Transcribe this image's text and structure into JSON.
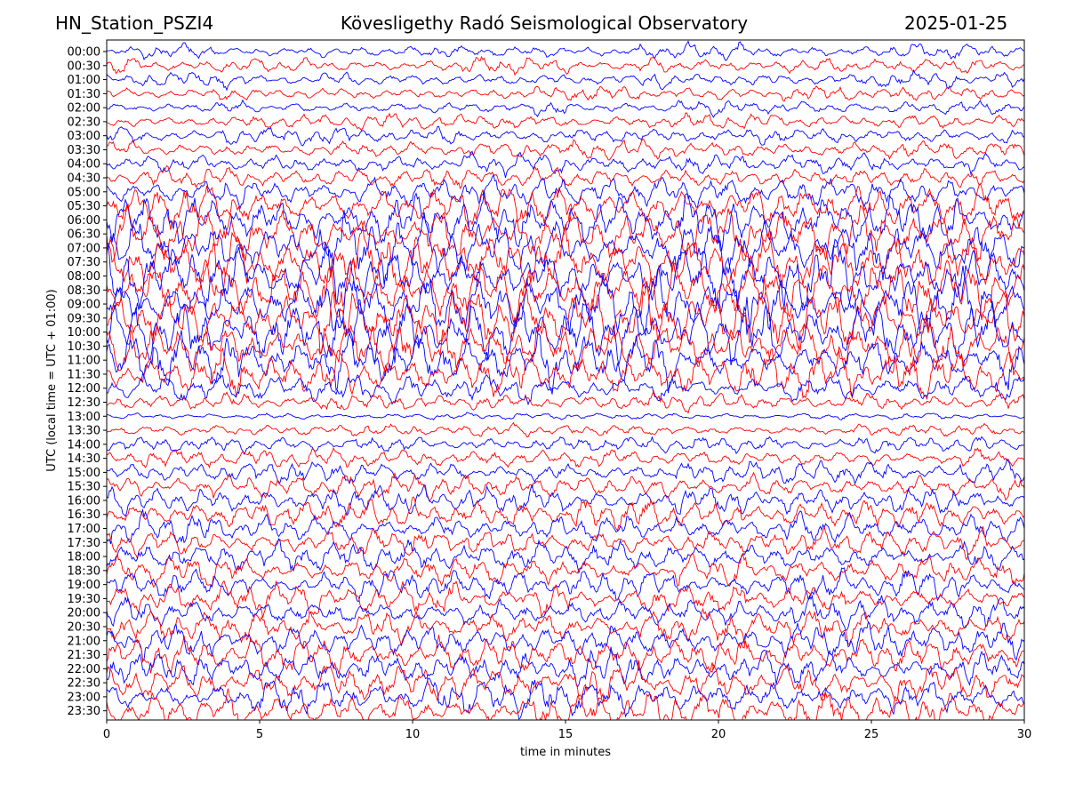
{
  "header": {
    "station": "HN_Station_PSZI4",
    "observatory": "Kövesligethy Radó Seismological Observatory",
    "date": "2025-01-25"
  },
  "chart_data": {
    "type": "line",
    "title": "Kövesligethy Radó Seismological Observatory",
    "xlabel": "time in minutes",
    "ylabel": "UTC (local time = UTC + 01:00)",
    "xlim": [
      0,
      30
    ],
    "x_ticks": [
      "0",
      "5",
      "10",
      "15",
      "20",
      "25",
      "30"
    ],
    "y_ticks": [
      "00:00",
      "00:30",
      "01:00",
      "01:30",
      "02:00",
      "02:30",
      "03:00",
      "03:30",
      "04:00",
      "04:30",
      "05:00",
      "05:30",
      "06:00",
      "06:30",
      "07:00",
      "07:30",
      "08:00",
      "08:30",
      "09:00",
      "09:30",
      "10:00",
      "10:30",
      "11:00",
      "11:30",
      "12:00",
      "12:30",
      "13:00",
      "13:30",
      "14:00",
      "14:30",
      "15:00",
      "15:30",
      "16:00",
      "16:30",
      "17:00",
      "17:30",
      "18:00",
      "18:30",
      "19:00",
      "19:30",
      "20:00",
      "20:30",
      "21:00",
      "21:30",
      "22:00",
      "22:30",
      "23:00",
      "23:30"
    ],
    "trace_colors": [
      "#0000ff",
      "#ff0000"
    ],
    "relative_amplitude": [
      0.9,
      0.9,
      0.9,
      0.8,
      0.9,
      0.9,
      1.0,
      1.0,
      1.2,
      1.3,
      1.8,
      2.2,
      2.6,
      3.0,
      3.2,
      3.4,
      3.5,
      3.6,
      3.6,
      3.5,
      3.4,
      3.2,
      3.0,
      2.6,
      1.5,
      1.1,
      0.35,
      0.7,
      1.0,
      1.1,
      1.3,
      1.4,
      1.5,
      1.6,
      1.6,
      1.6,
      1.7,
      1.7,
      1.7,
      1.8,
      1.8,
      1.8,
      1.9,
      1.9,
      2.0,
      2.0,
      2.1,
      2.1
    ],
    "grid": false
  }
}
